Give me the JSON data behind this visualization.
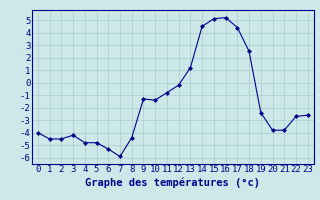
{
  "hours": [
    0,
    1,
    2,
    3,
    4,
    5,
    6,
    7,
    8,
    9,
    10,
    11,
    12,
    13,
    14,
    15,
    16,
    17,
    18,
    19,
    20,
    21,
    22,
    23
  ],
  "temps": [
    -4.0,
    -4.5,
    -4.5,
    -4.2,
    -4.8,
    -4.8,
    -5.3,
    -5.9,
    -4.4,
    -1.3,
    -1.4,
    -0.8,
    -0.2,
    1.2,
    4.5,
    5.1,
    5.2,
    4.4,
    2.5,
    -2.4,
    -3.8,
    -3.8,
    -2.7,
    -2.6
  ],
  "line_color": "#00008B",
  "marker": "D",
  "marker_size": 2.0,
  "bg_color": "#cce8e8",
  "grid_color": "#aacccc",
  "xlabel": "Graphe des températures (°c)",
  "xlabel_color": "#00008B",
  "ylabel_ticks": [
    5,
    4,
    3,
    2,
    1,
    0,
    -1,
    -2,
    -3,
    -4,
    -5,
    -6
  ],
  "ylim": [
    -6.5,
    5.8
  ],
  "xlim": [
    -0.5,
    23.5
  ],
  "xtick_labels": [
    "0",
    "1",
    "2",
    "3",
    "4",
    "5",
    "6",
    "7",
    "8",
    "9",
    "10",
    "11",
    "12",
    "13",
    "14",
    "15",
    "16",
    "17",
    "18",
    "19",
    "20",
    "21",
    "22",
    "23"
  ],
  "tick_fontsize": 6.5,
  "xlabel_fontsize": 7.5,
  "xlabel_fontweight": "bold"
}
